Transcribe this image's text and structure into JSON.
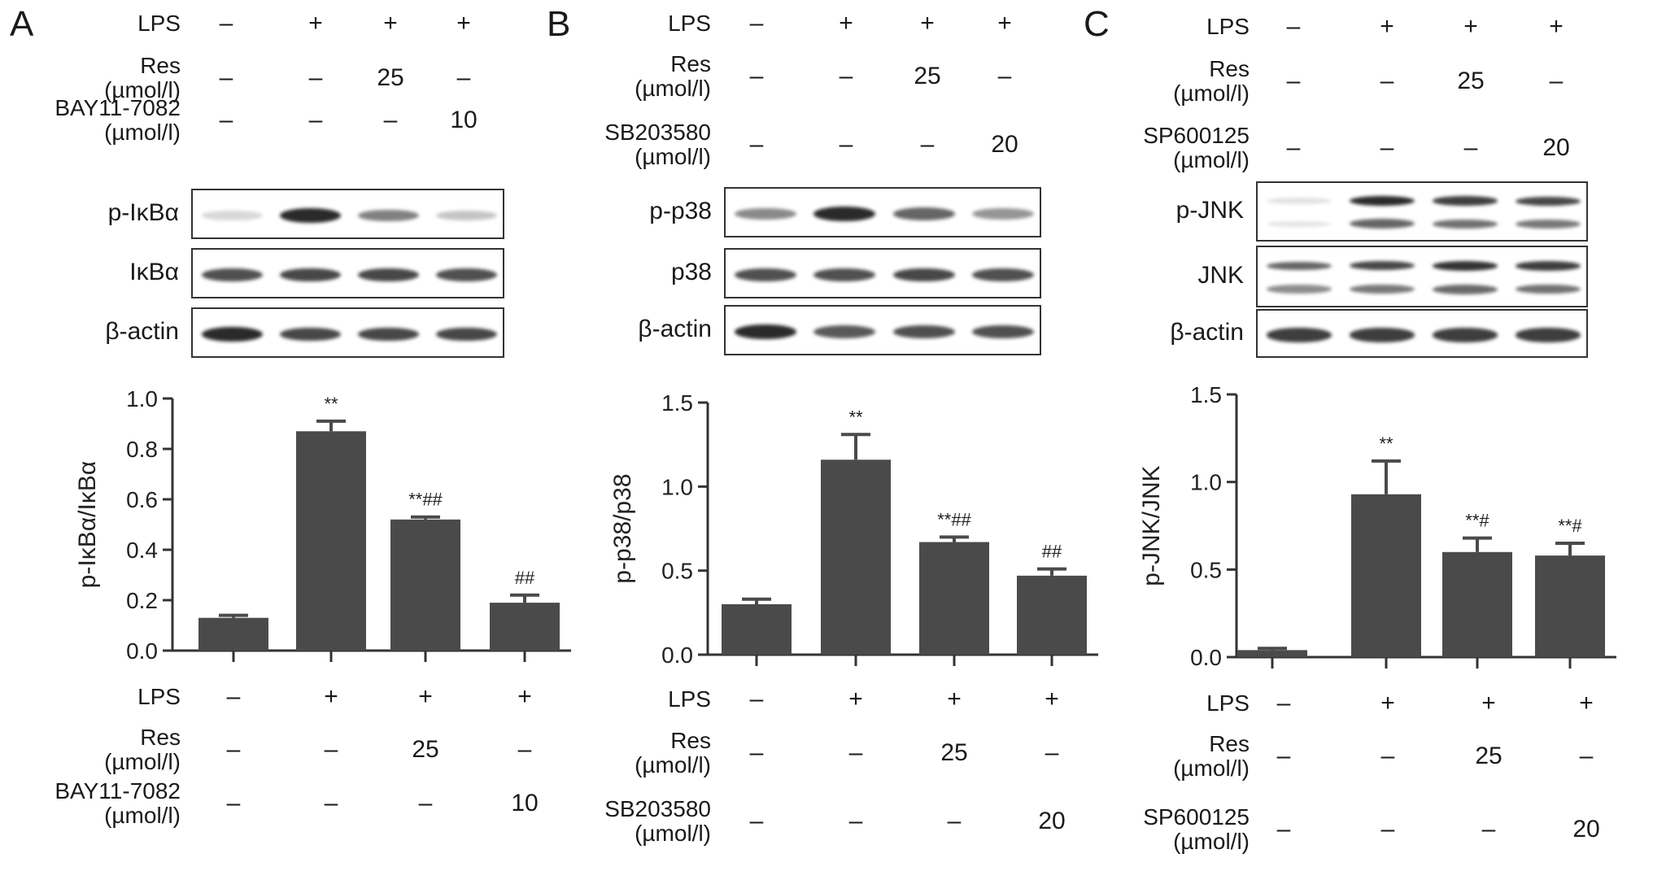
{
  "panels": [
    {
      "letter": "A",
      "top_conditions": [
        {
          "label": "LPS",
          "values": [
            "–",
            "+",
            "+",
            "+"
          ]
        },
        {
          "label": "Res\n(µmol/l)",
          "values": [
            "–",
            "–",
            "25",
            "–"
          ]
        },
        {
          "label": "BAY11-7082\n(µmol/l)",
          "values": [
            "–",
            "–",
            "–",
            "10"
          ]
        }
      ],
      "blots": [
        {
          "label": "p-IκBα",
          "intensity": [
            0.1,
            1.0,
            0.55,
            0.2
          ]
        },
        {
          "label": "IκBα",
          "intensity": [
            0.8,
            0.85,
            0.85,
            0.8
          ]
        },
        {
          "label": "β-actin",
          "intensity": [
            1.0,
            0.85,
            0.85,
            0.85
          ]
        }
      ],
      "bottom_conditions": [
        {
          "label": "LPS",
          "values": [
            "–",
            "+",
            "+",
            "+"
          ]
        },
        {
          "label": "Res\n(µmol/l)",
          "values": [
            "–",
            "–",
            "25",
            "–"
          ]
        },
        {
          "label": "BAY11-7082\n(µmol/l)",
          "values": [
            "–",
            "–",
            "–",
            "10"
          ]
        }
      ]
    },
    {
      "letter": "B",
      "top_conditions": [
        {
          "label": "LPS",
          "values": [
            "–",
            "+",
            "+",
            "+"
          ]
        },
        {
          "label": "Res\n(µmol/l)",
          "values": [
            "–",
            "–",
            "25",
            "–"
          ]
        },
        {
          "label": "SB203580\n(µmol/l)",
          "values": [
            "–",
            "–",
            "–",
            "20"
          ]
        }
      ],
      "blots": [
        {
          "label": "p-p38",
          "intensity": [
            0.5,
            1.0,
            0.7,
            0.45
          ]
        },
        {
          "label": "p38",
          "intensity": [
            0.8,
            0.8,
            0.85,
            0.8
          ]
        },
        {
          "label": "β-actin",
          "intensity": [
            1.0,
            0.75,
            0.8,
            0.8
          ]
        }
      ],
      "bottom_conditions": [
        {
          "label": "LPS",
          "values": [
            "–",
            "+",
            "+",
            "+"
          ]
        },
        {
          "label": "Res\n(µmol/l)",
          "values": [
            "–",
            "–",
            "25",
            "–"
          ]
        },
        {
          "label": "SB203580\n(µmol/l)",
          "values": [
            "–",
            "–",
            "–",
            "20"
          ]
        }
      ]
    },
    {
      "letter": "C",
      "top_conditions": [
        {
          "label": "LPS",
          "values": [
            "–",
            "+",
            "+",
            "+"
          ]
        },
        {
          "label": "Res\n(µmol/l)",
          "values": [
            "–",
            "–",
            "25",
            "–"
          ]
        },
        {
          "label": "SP600125\n(µmol/l)",
          "values": [
            "–",
            "–",
            "–",
            "20"
          ]
        }
      ],
      "blots": [
        {
          "label": "p-JNK",
          "intensity": [
            0.05,
            1.0,
            0.9,
            0.85
          ],
          "double": true
        },
        {
          "label": "JNK",
          "intensity": [
            0.7,
            0.85,
            0.95,
            0.9
          ],
          "double": true
        },
        {
          "label": "β-actin",
          "intensity": [
            0.9,
            0.9,
            0.9,
            0.9
          ]
        }
      ],
      "bottom_conditions": [
        {
          "label": "LPS",
          "values": [
            "–",
            "+",
            "+",
            "+"
          ]
        },
        {
          "label": "Res\n(µmol/l)",
          "values": [
            "–",
            "–",
            "25",
            "–"
          ]
        },
        {
          "label": "SP600125\n(µmol/l)",
          "values": [
            "–",
            "–",
            "–",
            "20"
          ]
        }
      ]
    }
  ],
  "chart_data": [
    {
      "type": "bar",
      "ylabel": "p-IκBα/IκBα",
      "ylim": [
        0,
        1.0
      ],
      "yticks": [
        "0.0",
        "0.2",
        "0.4",
        "0.6",
        "0.8",
        "1.0"
      ],
      "values": [
        0.13,
        0.87,
        0.52,
        0.19
      ],
      "errors": [
        0.01,
        0.04,
        0.01,
        0.03
      ],
      "annotations": [
        "",
        "**",
        "**##",
        "##"
      ],
      "bar_color": "#4a4a4a"
    },
    {
      "type": "bar",
      "ylabel": "p-p38/p38",
      "ylim": [
        0,
        1.5
      ],
      "yticks": [
        "0.0",
        "0.5",
        "1.0",
        "1.5"
      ],
      "values": [
        0.3,
        1.16,
        0.67,
        0.47
      ],
      "errors": [
        0.03,
        0.15,
        0.03,
        0.04
      ],
      "annotations": [
        "",
        "**",
        "**##",
        "##"
      ],
      "bar_color": "#4a4a4a"
    },
    {
      "type": "bar",
      "ylabel": "p-JNK/JNK",
      "ylim": [
        0,
        1.5
      ],
      "yticks": [
        "0.0",
        "0.5",
        "1.0",
        "1.5"
      ],
      "values": [
        0.04,
        0.93,
        0.6,
        0.58
      ],
      "errors": [
        0.01,
        0.19,
        0.08,
        0.07
      ],
      "annotations": [
        "",
        "**",
        "**#",
        "**#"
      ],
      "bar_color": "#4a4a4a"
    }
  ]
}
